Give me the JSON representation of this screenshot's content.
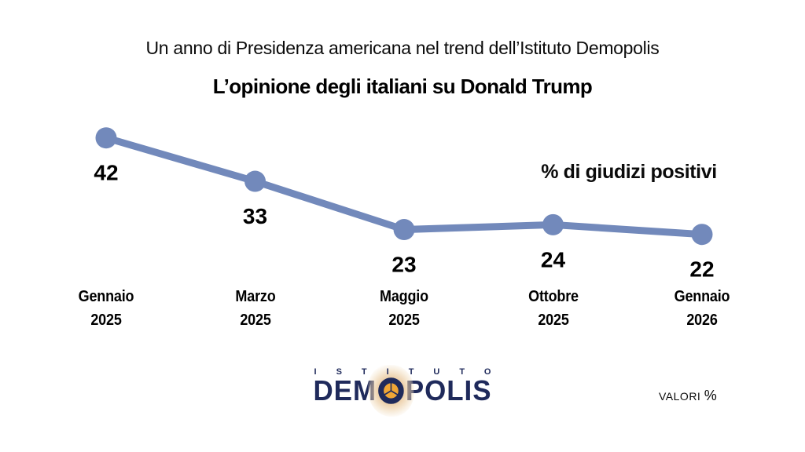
{
  "slide": {
    "supertitle": "Un anno di Presidenza americana nel trend dell’Istituto Demopolis",
    "title": "L’opinione degli italiani su Donald Trump"
  },
  "chart_data": {
    "type": "line",
    "title": "L’opinione degli italiani su Donald Trump",
    "series_label": "% di giudizi positivi",
    "categories": [
      [
        "Gennaio",
        "2025"
      ],
      [
        "Marzo",
        "2025"
      ],
      [
        "Maggio",
        "2025"
      ],
      [
        "Ottobre",
        "2025"
      ],
      [
        "Gennaio",
        "2026"
      ]
    ],
    "values": [
      42,
      33,
      23,
      24,
      22
    ],
    "ylim": [
      0,
      50
    ],
    "grid": false,
    "legend_position": "top-right",
    "line_color": "#7289BB",
    "marker_color": "#7289BB",
    "value_label_color": "#000000",
    "unit": "%"
  },
  "footer": {
    "logo": {
      "istituto": "ISTITUTO",
      "demopolis_left": "DEM",
      "demopolis_right": "POLIS",
      "navy": "#1F2A5B",
      "orange": "#F0A636"
    },
    "note_label": "VALORI",
    "note_symbol": "%"
  }
}
